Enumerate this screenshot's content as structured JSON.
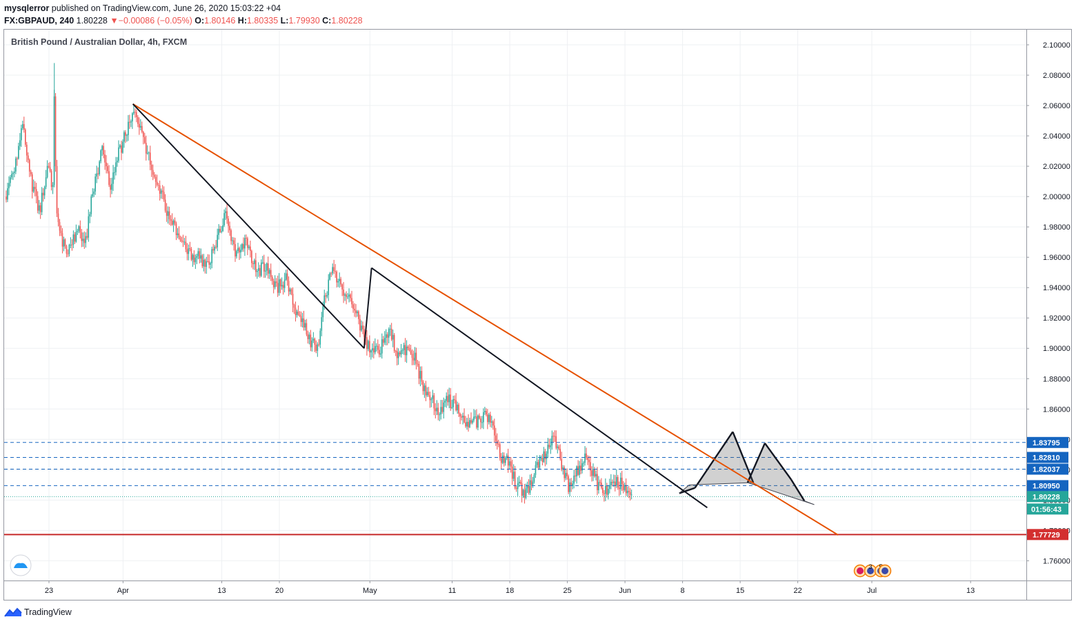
{
  "header": {
    "author": "mysqlerror",
    "published_text": "published on TradingView.com, June 26, 2020 15:03:22 +04",
    "symbol": "FX:GBPAUD, 240",
    "last_price": "1.80228",
    "change_arrow": "▼",
    "change": "−0.00086 (−0.05%)",
    "o_label": "O:",
    "o_value": "1.80146",
    "h_label": "H:",
    "h_value": "1.80335",
    "l_label": "L:",
    "l_value": "1.79930",
    "c_label": "C:",
    "c_value": "1.80228"
  },
  "footer": {
    "brand": "TradingView"
  },
  "colors": {
    "up": "#26a69a",
    "down": "#ef5350",
    "trend_orange": "#e65100",
    "pattern_line": "#131722",
    "level_blue": "#1565c0",
    "price_teal": "#26a69a",
    "support_red": "#c62828",
    "grid": "#eef0f3"
  },
  "chart_data": {
    "type": "candlestick",
    "title": "British Pound / Australian Dollar, 4h, FXCM",
    "ylim": [
      1.747,
      2.11
    ],
    "y_ticks": [
      "2.10000",
      "2.08000",
      "2.06000",
      "2.04000",
      "2.02000",
      "2.00000",
      "1.98000",
      "1.96000",
      "1.94000",
      "1.92000",
      "1.90000",
      "1.88000",
      "1.86000",
      "1.84000",
      "1.82000",
      "1.80000",
      "1.78000",
      "1.76000"
    ],
    "x_ticks": [
      {
        "label": "23",
        "day": 0
      },
      {
        "label": "Apr",
        "day": 9
      },
      {
        "label": "13",
        "day": 21
      },
      {
        "label": "20",
        "day": 28
      },
      {
        "label": "May",
        "day": 39
      },
      {
        "label": "11",
        "day": 49
      },
      {
        "label": "18",
        "day": 56
      },
      {
        "label": "25",
        "day": 63
      },
      {
        "label": "Jun",
        "day": 70
      },
      {
        "label": "8",
        "day": 77
      },
      {
        "label": "15",
        "day": 84
      },
      {
        "label": "22",
        "day": 91
      },
      {
        "label": "Jul",
        "day": 100
      },
      {
        "label": "13",
        "day": 112
      }
    ],
    "x_range_days": [
      -5.3,
      119.5
    ],
    "anchors": [
      [
        -5.2,
        2.0
      ],
      [
        -4.0,
        2.02
      ],
      [
        -3.0,
        2.05
      ],
      [
        -2.0,
        2.01
      ],
      [
        -1.0,
        1.99
      ],
      [
        0.0,
        2.02
      ],
      [
        0.8,
        2.0
      ],
      [
        1.5,
        1.975
      ],
      [
        2.4,
        1.96
      ],
      [
        3.6,
        1.98
      ],
      [
        4.5,
        1.965
      ],
      [
        5.4,
        2.0
      ],
      [
        6.6,
        2.03
      ],
      [
        7.6,
        2.005
      ],
      [
        8.4,
        2.025
      ],
      [
        9.4,
        2.04
      ],
      [
        10.4,
        2.058
      ],
      [
        11.3,
        2.045
      ],
      [
        12.4,
        2.025
      ],
      [
        13.4,
        2.01
      ],
      [
        14.5,
        1.99
      ],
      [
        15.8,
        1.975
      ],
      [
        17.0,
        1.962
      ],
      [
        18.4,
        1.96
      ],
      [
        19.6,
        1.955
      ],
      [
        20.6,
        1.972
      ],
      [
        21.5,
        1.988
      ],
      [
        22.8,
        1.965
      ],
      [
        24.2,
        1.97
      ],
      [
        25.5,
        1.95
      ],
      [
        26.6,
        1.955
      ],
      [
        27.9,
        1.94
      ],
      [
        29.0,
        1.945
      ],
      [
        30.0,
        1.926
      ],
      [
        31.0,
        1.92
      ],
      [
        31.9,
        1.905
      ],
      [
        32.8,
        1.9
      ],
      [
        33.7,
        1.935
      ],
      [
        34.7,
        1.952
      ],
      [
        35.6,
        1.94
      ],
      [
        36.8,
        1.935
      ],
      [
        38.0,
        1.915
      ],
      [
        39.1,
        1.898
      ],
      [
        40.4,
        1.9
      ],
      [
        41.5,
        1.912
      ],
      [
        42.6,
        1.895
      ],
      [
        43.5,
        1.9
      ],
      [
        44.6,
        1.893
      ],
      [
        45.7,
        1.875
      ],
      [
        46.7,
        1.868
      ],
      [
        47.6,
        1.855
      ],
      [
        48.6,
        1.867
      ],
      [
        49.5,
        1.862
      ],
      [
        50.4,
        1.855
      ],
      [
        51.4,
        1.85
      ],
      [
        52.4,
        1.852
      ],
      [
        53.3,
        1.858
      ],
      [
        54.1,
        1.845
      ],
      [
        55.0,
        1.83
      ],
      [
        56.2,
        1.822
      ],
      [
        57.1,
        1.808
      ],
      [
        58.2,
        1.805
      ],
      [
        59.3,
        1.82
      ],
      [
        60.5,
        1.83
      ],
      [
        61.6,
        1.843
      ],
      [
        62.4,
        1.825
      ],
      [
        63.3,
        1.81
      ],
      [
        64.5,
        1.82
      ],
      [
        65.6,
        1.831
      ],
      [
        66.4,
        1.815
      ],
      [
        67.4,
        1.805
      ],
      [
        68.2,
        1.806
      ],
      [
        69.3,
        1.812
      ],
      [
        70.3,
        1.808
      ],
      [
        70.8,
        1.803
      ]
    ],
    "support_level": {
      "value": 1.77729,
      "label": "1.77729"
    },
    "levels": [
      {
        "value": 1.83795,
        "label": "1.83795"
      },
      {
        "value": 1.8281,
        "label": "1.82810"
      },
      {
        "value": 1.82037,
        "label": "1.82037"
      },
      {
        "value": 1.8095,
        "label": "1.80950"
      }
    ],
    "current_price": {
      "value": 1.80228,
      "label": "1.80228",
      "countdown": "01:56:43"
    },
    "trendlines": [
      {
        "name": "outer-downtrend",
        "color": "orange",
        "from": [
          10.2,
          2.061
        ],
        "to": [
          95.9,
          1.777
        ]
      },
      {
        "name": "inner-downtrend-1",
        "color": "black",
        "from": [
          10.2,
          2.061
        ],
        "to": [
          38.3,
          1.9
        ]
      },
      {
        "name": "inner-downtrend-2",
        "color": "black",
        "from": [
          39.2,
          1.953
        ],
        "to": [
          80.0,
          1.795
        ]
      }
    ],
    "impulse_leg": [
      [
        38.3,
        1.9
      ],
      [
        39.2,
        1.953
      ]
    ],
    "harmonic_patterns": [
      {
        "points": [
          [
            76.6,
            1.8045
          ],
          [
            78.5,
            1.808
          ],
          [
            83.1,
            1.845
          ],
          [
            85.6,
            1.8115
          ],
          [
            77.8,
            1.81
          ]
        ]
      },
      {
        "points": [
          [
            84.9,
            1.8115
          ],
          [
            87.0,
            1.8375
          ],
          [
            90.2,
            1.8135
          ],
          [
            91.8,
            1.7995
          ],
          [
            93.0,
            1.797
          ]
        ]
      }
    ],
    "event_markers": [
      "3",
      "5"
    ]
  }
}
